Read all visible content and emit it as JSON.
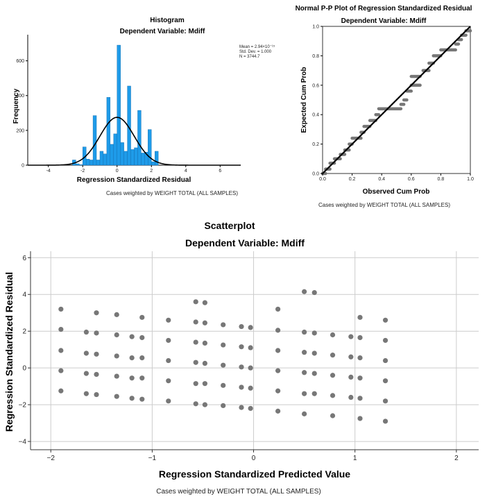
{
  "chart_data": [
    {
      "type": "bar",
      "title": "Histogram",
      "subtitle": "Dependent Variable: Mdiff",
      "xlabel": "Regression Standardized Residual",
      "ylabel": "Frequency",
      "footnote": "Cases weighted by WEIGHT TOTAL (ALL SAMPLES)",
      "xlim": [
        -5.2,
        7.2
      ],
      "ylim": [
        0,
        750
      ],
      "xticks": [
        -4,
        -2,
        0,
        2,
        4,
        6
      ],
      "yticks": [
        0,
        200,
        400,
        600
      ],
      "bin_width": 0.2,
      "bins": [
        [
          -2.6,
          30
        ],
        [
          -2.4,
          8
        ],
        [
          -2.2,
          3
        ],
        [
          -2.0,
          105
        ],
        [
          -1.8,
          35
        ],
        [
          -1.6,
          30
        ],
        [
          -1.4,
          285
        ],
        [
          -1.2,
          30
        ],
        [
          -1.0,
          80
        ],
        [
          -0.8,
          65
        ],
        [
          -0.6,
          390
        ],
        [
          -0.4,
          120
        ],
        [
          -0.2,
          180
        ],
        [
          0.0,
          690
        ],
        [
          0.2,
          130
        ],
        [
          0.4,
          80
        ],
        [
          0.6,
          455
        ],
        [
          0.8,
          90
        ],
        [
          1.0,
          100
        ],
        [
          1.2,
          315
        ],
        [
          1.4,
          70
        ],
        [
          1.6,
          75
        ],
        [
          1.8,
          205
        ],
        [
          2.0,
          20
        ],
        [
          2.2,
          80
        ]
      ],
      "normal_curve": {
        "mean": 0,
        "sd": 1,
        "peak": 275
      },
      "legend": {
        "mean": "Mean = 2.94×10⁻¹⁵",
        "std": "Std. Dev. = 1.000",
        "n": "N = 3744.7"
      },
      "colors": {
        "bar": "#1e9be9",
        "bar_edge": "#1268a8",
        "curve": "#000000"
      }
    },
    {
      "type": "line",
      "title": "Normal P-P Plot of Regression Standardized Residual",
      "subtitle": "Dependent Variable: Mdiff",
      "xlabel": "Observed Cum Prob",
      "ylabel": "Expected Cum Prob",
      "footnote": "Cases weighted by WEIGHT TOTAL (ALL SAMPLES)",
      "xlim": [
        0,
        1
      ],
      "ylim": [
        0,
        1
      ],
      "xticks": [
        "0.0",
        "0.2",
        "0.4",
        "0.6",
        "0.8",
        "1.0"
      ],
      "yticks": [
        "0.0",
        "0.2",
        "0.4",
        "0.6",
        "0.8",
        "1.0"
      ],
      "reference_line": [
        [
          0,
          0
        ],
        [
          1,
          1
        ]
      ],
      "steps": [
        [
          0.0,
          0.02,
          0.0
        ],
        [
          0.02,
          0.05,
          0.03
        ],
        [
          0.05,
          0.08,
          0.07
        ],
        [
          0.08,
          0.12,
          0.1
        ],
        [
          0.12,
          0.15,
          0.13
        ],
        [
          0.15,
          0.18,
          0.16
        ],
        [
          0.18,
          0.2,
          0.2
        ],
        [
          0.2,
          0.26,
          0.24
        ],
        [
          0.26,
          0.28,
          0.28
        ],
        [
          0.28,
          0.32,
          0.32
        ],
        [
          0.32,
          0.36,
          0.36
        ],
        [
          0.36,
          0.38,
          0.4
        ],
        [
          0.38,
          0.53,
          0.44
        ],
        [
          0.53,
          0.55,
          0.47
        ],
        [
          0.55,
          0.57,
          0.5
        ],
        [
          0.57,
          0.6,
          0.56
        ],
        [
          0.6,
          0.66,
          0.6
        ],
        [
          0.6,
          0.66,
          0.66
        ],
        [
          0.68,
          0.72,
          0.7
        ],
        [
          0.72,
          0.75,
          0.75
        ],
        [
          0.75,
          0.8,
          0.8
        ],
        [
          0.8,
          0.9,
          0.84
        ],
        [
          0.9,
          0.92,
          0.88
        ],
        [
          0.92,
          0.94,
          0.91
        ],
        [
          0.94,
          0.97,
          0.94
        ],
        [
          0.97,
          1.0,
          0.97
        ]
      ],
      "colors": {
        "points": "#777777",
        "line": "#000000"
      }
    },
    {
      "type": "scatter",
      "title": "Scatterplot",
      "subtitle": "Dependent Variable: Mdiff",
      "xlabel": "Regression Standardized Predicted Value",
      "ylabel": "Regression Standardized Residual",
      "footnote": "Cases weighted by WEIGHT TOTAL (ALL SAMPLES)",
      "xlim": [
        -2.2,
        2.22
      ],
      "ylim": [
        -4.45,
        6.35
      ],
      "xticks": [
        -2,
        -1,
        0,
        1,
        2
      ],
      "yticks": [
        -4,
        -2,
        0,
        2,
        4,
        6
      ],
      "grid": true,
      "points": [
        [
          -1.9,
          3.2
        ],
        [
          -1.9,
          2.1
        ],
        [
          -1.9,
          0.95
        ],
        [
          -1.9,
          -0.15
        ],
        [
          -1.9,
          -1.25
        ],
        [
          -1.65,
          1.95
        ],
        [
          -1.65,
          0.8
        ],
        [
          -1.65,
          -0.3
        ],
        [
          -1.65,
          -1.4
        ],
        [
          -1.55,
          3.0
        ],
        [
          -1.55,
          1.9
        ],
        [
          -1.55,
          0.75
        ],
        [
          -1.55,
          -0.35
        ],
        [
          -1.55,
          -1.45
        ],
        [
          -1.35,
          2.9
        ],
        [
          -1.35,
          1.8
        ],
        [
          -1.35,
          0.65
        ],
        [
          -1.35,
          -0.45
        ],
        [
          -1.35,
          -1.55
        ],
        [
          -1.2,
          1.7
        ],
        [
          -1.2,
          0.55
        ],
        [
          -1.2,
          -0.55
        ],
        [
          -1.2,
          -1.65
        ],
        [
          -1.1,
          2.75
        ],
        [
          -1.1,
          1.65
        ],
        [
          -1.1,
          0.55
        ],
        [
          -1.1,
          -0.55
        ],
        [
          -1.1,
          -1.7
        ],
        [
          -0.84,
          2.6
        ],
        [
          -0.84,
          1.5
        ],
        [
          -0.84,
          0.4
        ],
        [
          -0.84,
          -0.7
        ],
        [
          -0.84,
          -1.8
        ],
        [
          -0.57,
          3.6
        ],
        [
          -0.57,
          2.5
        ],
        [
          -0.57,
          1.4
        ],
        [
          -0.57,
          0.3
        ],
        [
          -0.57,
          -0.85
        ],
        [
          -0.57,
          -1.95
        ],
        [
          -0.48,
          3.55
        ],
        [
          -0.48,
          2.45
        ],
        [
          -0.48,
          1.35
        ],
        [
          -0.48,
          0.25
        ],
        [
          -0.48,
          -0.85
        ],
        [
          -0.48,
          -2.0
        ],
        [
          -0.3,
          2.35
        ],
        [
          -0.3,
          1.25
        ],
        [
          -0.3,
          0.15
        ],
        [
          -0.3,
          -0.95
        ],
        [
          -0.3,
          -2.05
        ],
        [
          -0.12,
          2.25
        ],
        [
          -0.12,
          1.15
        ],
        [
          -0.12,
          0.05
        ],
        [
          -0.12,
          -1.05
        ],
        [
          -0.12,
          -2.15
        ],
        [
          -0.03,
          2.2
        ],
        [
          -0.03,
          1.1
        ],
        [
          -0.03,
          0.0
        ],
        [
          -0.03,
          -1.1
        ],
        [
          -0.03,
          -2.2
        ],
        [
          0.24,
          3.2
        ],
        [
          0.24,
          2.05
        ],
        [
          0.24,
          0.95
        ],
        [
          0.24,
          -0.15
        ],
        [
          0.24,
          -1.25
        ],
        [
          0.24,
          -2.35
        ],
        [
          0.5,
          4.15
        ],
        [
          0.5,
          1.95
        ],
        [
          0.5,
          0.85
        ],
        [
          0.5,
          -0.25
        ],
        [
          0.5,
          -1.4
        ],
        [
          0.5,
          -2.5
        ],
        [
          0.6,
          4.1
        ],
        [
          0.6,
          1.9
        ],
        [
          0.6,
          0.8
        ],
        [
          0.6,
          -0.3
        ],
        [
          0.6,
          -1.4
        ],
        [
          0.78,
          1.8
        ],
        [
          0.78,
          0.7
        ],
        [
          0.78,
          -0.4
        ],
        [
          0.78,
          -1.5
        ],
        [
          0.78,
          -2.6
        ],
        [
          0.96,
          1.7
        ],
        [
          0.96,
          0.6
        ],
        [
          0.96,
          -0.5
        ],
        [
          0.96,
          -1.6
        ],
        [
          1.05,
          2.75
        ],
        [
          1.05,
          1.65
        ],
        [
          1.05,
          0.55
        ],
        [
          1.05,
          -0.55
        ],
        [
          1.05,
          -1.65
        ],
        [
          1.05,
          -2.75
        ],
        [
          1.3,
          2.6
        ],
        [
          1.3,
          1.5
        ],
        [
          1.3,
          0.4
        ],
        [
          1.3,
          -0.7
        ],
        [
          1.3,
          -1.8
        ],
        [
          1.3,
          -2.9
        ]
      ],
      "colors": {
        "points": "#777777",
        "grid": "#cccccc"
      }
    }
  ]
}
